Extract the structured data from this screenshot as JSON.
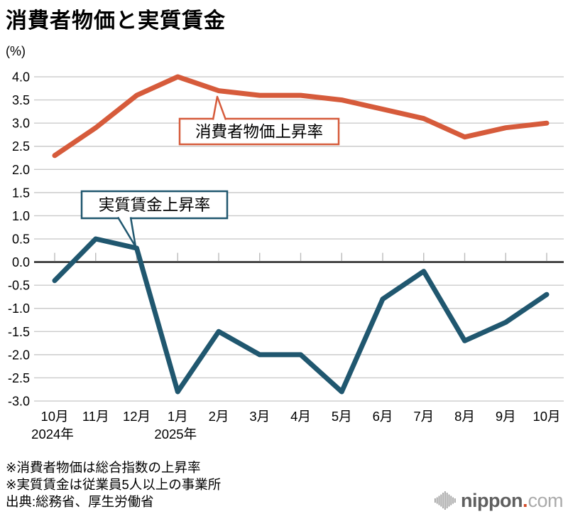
{
  "chart_data": {
    "type": "line",
    "title": "消費者物価と実質賃金",
    "y_unit_label": "(%)",
    "categories": [
      "10月",
      "11月",
      "12月",
      "1月",
      "2月",
      "3月",
      "4月",
      "5月",
      "6月",
      "7月",
      "8月",
      "9月",
      "10月"
    ],
    "x_year_labels": [
      {
        "label": "2024年",
        "index": 0
      },
      {
        "label": "2025年",
        "index": 3
      }
    ],
    "series": [
      {
        "name": "消費者物価上昇率",
        "color": "#d65b3b",
        "values": [
          2.3,
          2.9,
          3.6,
          4.0,
          3.7,
          3.6,
          3.6,
          3.5,
          3.3,
          3.1,
          2.7,
          2.9,
          3.0
        ]
      },
      {
        "name": "実質賃金上昇率",
        "color": "#20576f",
        "values": [
          -0.4,
          0.5,
          0.3,
          -2.8,
          -1.5,
          -2.0,
          -2.0,
          -2.8,
          -0.8,
          -0.2,
          -1.7,
          -1.3,
          -0.7
        ]
      }
    ],
    "ylim": [
      -3.0,
      4.0
    ],
    "ytick_step": 0.5,
    "grid": true,
    "zero_line": true,
    "legend_position": "callout-labels-on-plot"
  },
  "footnotes": [
    "※消費者物価は総合指数の上昇率",
    "※実質賃金は従業員5人以上の事業所",
    "出典:総務省、厚生労働省"
  ],
  "logo": {
    "brand": "nippon",
    "dot": ".",
    "tld": "com"
  }
}
